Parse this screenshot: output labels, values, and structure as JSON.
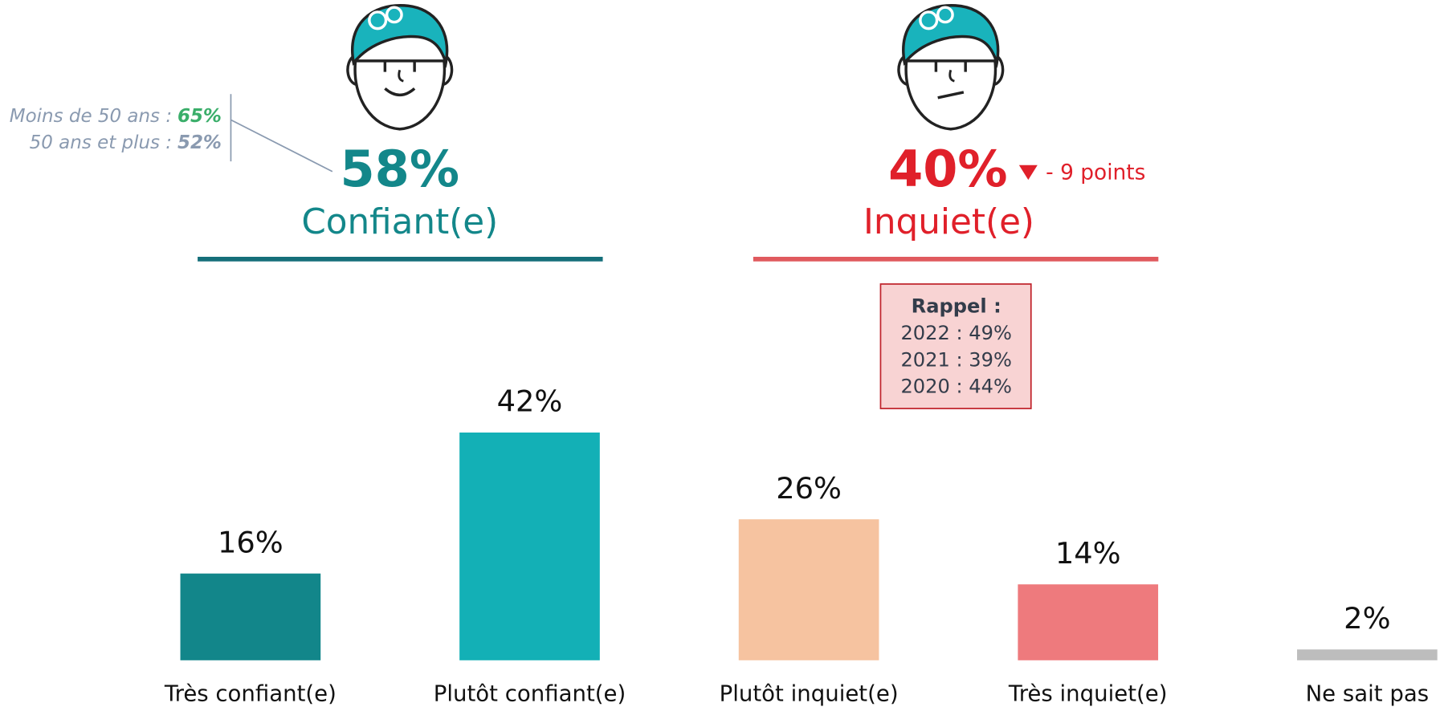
{
  "chart_data": {
    "type": "bar",
    "categories": [
      "Très confiant(e)",
      "Plutôt confiant(e)",
      "Plutôt inquiet(e)",
      "Très inquiet(e)",
      "Ne sait pas"
    ],
    "values": [
      16,
      42,
      26,
      14,
      2
    ],
    "value_labels": [
      "16%",
      "42%",
      "26%",
      "14%",
      "2%"
    ],
    "colors": [
      "#12868a",
      "#13b0b6",
      "#f6c3a0",
      "#ee7a7d",
      "#bdbdbd"
    ]
  },
  "summary": [
    {
      "value_label": "58%",
      "label": "Confiant(e)",
      "color": "#13878a",
      "rule_color": "#156f7a"
    },
    {
      "value_label": "40%",
      "label": "Inquiet(e)",
      "color": "#e0202a",
      "rule_color": "#e05a5e",
      "change": "- 9 points"
    }
  ],
  "age_breakdown": [
    {
      "label": "Moins de 50 ans :",
      "value": "65%",
      "color": "#3aae6a"
    },
    {
      "label": "50 ans et plus :",
      "value": "52%",
      "color": "#8a9ab0"
    }
  ],
  "recall": {
    "title": "Rappel :",
    "rows": [
      "2022 : 49%",
      "2021 : 39%",
      "2020 : 44%"
    ]
  }
}
